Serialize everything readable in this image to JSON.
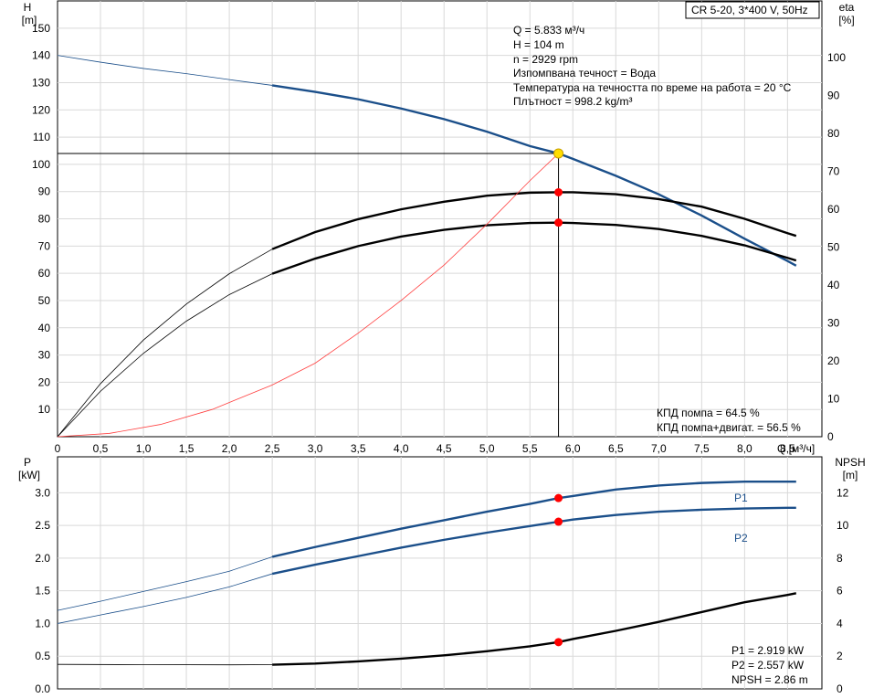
{
  "header": {
    "product_label": "CR 5-20, 3*400 V, 50Hz"
  },
  "info": {
    "lines": [
      "Q = 5.833 м³/ч",
      "H = 104 m",
      "n = 2929 rpm",
      "Изпомпвана течност = Вода",
      "Температура на течността по време на работа = 20 °C",
      "Плътност = 998.2 kg/m³"
    ]
  },
  "duty_point": {
    "q": 5.833,
    "h": 104,
    "eta_pump": 64.5,
    "eta_total": 56.5,
    "p1": 2.919,
    "p2": 2.557,
    "npsh": 2.86
  },
  "efficiency_text": {
    "pump": "КПД помпа = 64.5 %",
    "total": "КПД помпа+двигат. = 56.5 %"
  },
  "power_text": {
    "p1": "P1 = 2.919 kW",
    "p2": "P2 = 2.557 kW",
    "npsh": "NPSH = 2.86 m"
  },
  "chart_data": [
    {
      "type": "line",
      "title": "",
      "xlabel": "Q [м³/ч]",
      "ylabel_left": "H",
      "ylabel_left_unit": "[m]",
      "ylabel_right": "eta",
      "ylabel_right_unit": "[%]",
      "xlim": [
        0,
        8.9
      ],
      "ylim_left": [
        0,
        160
      ],
      "ylim_right": [
        0,
        115
      ],
      "x_ticks": [
        "0",
        "0,5",
        "1,0",
        "1,5",
        "2,0",
        "2,5",
        "3,0",
        "3,5",
        "4,0",
        "4,5",
        "5,0",
        "5,5",
        "6,0",
        "6,5",
        "7,0",
        "7,5",
        "8,0",
        "8,5"
      ],
      "x_tick_values": [
        0,
        0.5,
        1,
        1.5,
        2,
        2.5,
        3,
        3.5,
        4,
        4.5,
        5,
        5.5,
        6,
        6.5,
        7,
        7.5,
        8,
        8.5
      ],
      "y_left_ticks": [
        10,
        20,
        30,
        40,
        50,
        60,
        70,
        80,
        90,
        100,
        110,
        120,
        130,
        140,
        150
      ],
      "y_right_ticks": [
        0,
        10,
        20,
        30,
        40,
        50,
        60,
        70,
        80,
        90,
        100
      ],
      "grid": true,
      "series": [
        {
          "id": "head",
          "color": "#1b4f8a",
          "axis": "left",
          "x": [
            0,
            0.5,
            1,
            1.5,
            2,
            2.5,
            3,
            3.5,
            4,
            4.5,
            5,
            5.5,
            5.833,
            6,
            6.5,
            7,
            7.5,
            8,
            8.5,
            8.6
          ],
          "y": [
            140,
            137.5,
            135.2,
            133.3,
            131.1,
            129,
            126.6,
            123.9,
            120.5,
            116.6,
            112,
            106.7,
            104,
            102,
            95.8,
            89,
            81.2,
            72.7,
            64.5,
            62.8
          ]
        },
        {
          "id": "eta-pump",
          "color": "#000000",
          "axis": "right",
          "x": [
            0,
            0.5,
            1,
            1.5,
            2,
            2.5,
            3,
            3.5,
            4,
            4.5,
            5,
            5.5,
            5.833,
            6,
            6.5,
            7,
            7.5,
            8,
            8.5,
            8.6
          ],
          "y": [
            0,
            14,
            25.5,
            35,
            43,
            49.5,
            54,
            57.4,
            60,
            62,
            63.6,
            64.4,
            64.5,
            64.5,
            64,
            62.7,
            60.7,
            57.5,
            53.7,
            53
          ]
        },
        {
          "id": "eta-total",
          "color": "#000000",
          "axis": "right",
          "x": [
            0,
            0.5,
            1,
            1.5,
            2,
            2.5,
            3,
            3.5,
            4,
            4.5,
            5,
            5.5,
            5.833,
            6,
            6.5,
            7,
            7.5,
            8,
            8.5,
            8.6
          ],
          "y": [
            0,
            12,
            22,
            30.5,
            37.5,
            43,
            47,
            50.3,
            52.8,
            54.6,
            55.8,
            56.4,
            56.5,
            56.4,
            55.9,
            54.8,
            53,
            50.5,
            47.2,
            46.5
          ]
        },
        {
          "id": "system-curve",
          "color": "#ff4040",
          "axis": "left",
          "x": [
            0,
            0.6,
            1.2,
            1.8,
            2.5,
            3,
            3.5,
            4,
            4.5,
            5,
            5.5,
            5.833
          ],
          "y": [
            0,
            1.2,
            4.5,
            10,
            19,
            27,
            38,
            50,
            63,
            78,
            94,
            104
          ]
        }
      ],
      "markers": [
        {
          "series": "head",
          "x": 5.833,
          "y": 104,
          "color": "#ffdd00"
        },
        {
          "series": "eta-pump",
          "x": 5.833,
          "y": 64.5,
          "color": "#ff0000"
        },
        {
          "series": "eta-total",
          "x": 5.833,
          "y": 56.5,
          "color": "#ff0000"
        }
      ]
    },
    {
      "type": "line",
      "title": "",
      "ylabel_left": "P",
      "ylabel_left_unit": "[kW]",
      "ylabel_right": "NPSH",
      "ylabel_right_unit": "[m]",
      "xlim": [
        0,
        8.9
      ],
      "ylim_left": [
        0,
        3.55
      ],
      "ylim_right": [
        0,
        14.2
      ],
      "y_left_ticks": [
        "0.0",
        "0.5",
        "1.0",
        "1.5",
        "2.0",
        "2.5",
        "3.0"
      ],
      "y_left_tick_values": [
        0,
        0.5,
        1,
        1.5,
        2,
        2.5,
        3
      ],
      "y_right_ticks": [
        0,
        2,
        4,
        6,
        8,
        10,
        12
      ],
      "grid": true,
      "series": [
        {
          "id": "p1",
          "name": "P1",
          "color": "#1b4f8a",
          "axis": "left",
          "x": [
            0,
            0.5,
            1,
            1.5,
            2,
            2.5,
            3,
            3.5,
            4,
            4.5,
            5,
            5.5,
            5.833,
            6,
            6.5,
            7,
            7.5,
            8,
            8.5,
            8.6
          ],
          "y": [
            1.2,
            1.34,
            1.49,
            1.64,
            1.8,
            2.02,
            2.17,
            2.31,
            2.45,
            2.58,
            2.71,
            2.83,
            2.919,
            2.95,
            3.05,
            3.11,
            3.15,
            3.17,
            3.17,
            3.17
          ]
        },
        {
          "id": "p2",
          "name": "P2",
          "color": "#1b4f8a",
          "axis": "left",
          "x": [
            0,
            0.5,
            1,
            1.5,
            2,
            2.5,
            3,
            3.5,
            4,
            4.5,
            5,
            5.5,
            5.833,
            6,
            6.5,
            7,
            7.5,
            8,
            8.5,
            8.6
          ],
          "y": [
            1.0,
            1.13,
            1.26,
            1.4,
            1.56,
            1.76,
            1.9,
            2.03,
            2.16,
            2.28,
            2.39,
            2.49,
            2.557,
            2.59,
            2.66,
            2.71,
            2.74,
            2.76,
            2.77,
            2.77
          ]
        },
        {
          "id": "npsh",
          "color": "#000000",
          "axis": "right",
          "x": [
            0,
            1,
            2,
            2.5,
            3,
            3.5,
            4,
            4.5,
            5,
            5.5,
            5.833,
            6,
            6.5,
            7,
            7.5,
            8,
            8.5,
            8.6
          ],
          "y": [
            1.5,
            1.48,
            1.47,
            1.48,
            1.55,
            1.68,
            1.85,
            2.05,
            2.3,
            2.6,
            2.86,
            3.05,
            3.55,
            4.1,
            4.7,
            5.3,
            5.75,
            5.85
          ]
        }
      ],
      "markers": [
        {
          "series": "p1",
          "x": 5.833,
          "y": 2.919,
          "color": "#ff0000"
        },
        {
          "series": "p2",
          "x": 5.833,
          "y": 2.557,
          "color": "#ff0000"
        },
        {
          "series": "npsh",
          "x": 5.833,
          "y": 2.86,
          "color": "#ff0000"
        }
      ]
    }
  ]
}
